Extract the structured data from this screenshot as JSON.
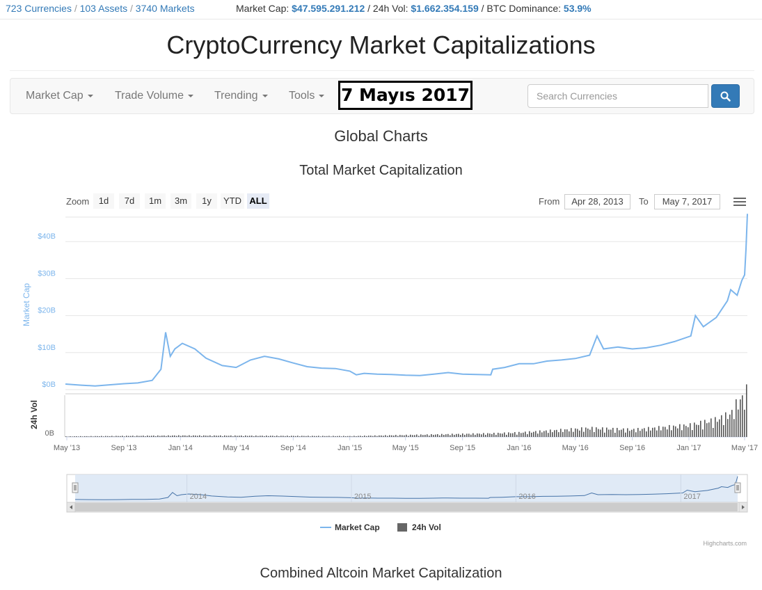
{
  "topbar": {
    "currencies": "723 Currencies",
    "assets": "103 Assets",
    "markets": "3740 Markets",
    "separator": "/"
  },
  "global_stats": {
    "market_cap_label": "Market Cap:",
    "market_cap_value": "$47.595.291.212",
    "vol_label": "/ 24h Vol:",
    "vol_value": "$1.662.354.159",
    "dominance_label": "/ BTC Dominance:",
    "dominance_value": "53.9%"
  },
  "site_title": "CryptoCurrency Market Capitalizations",
  "nav": {
    "items": [
      {
        "label": "Market Cap"
      },
      {
        "label": "Trade Volume"
      },
      {
        "label": "Trending"
      },
      {
        "label": "Tools"
      }
    ],
    "date_badge": "7 Mayıs 2017",
    "search_placeholder": "Search Currencies"
  },
  "headings": {
    "global": "Global Charts",
    "total": "Total Market Capitalization",
    "altcoin": "Combined Altcoin Market Capitalization"
  },
  "range_selector": {
    "zoom_label": "Zoom",
    "buttons": [
      "1d",
      "7d",
      "1m",
      "3m",
      "1y",
      "YTD",
      "ALL"
    ],
    "active": "ALL",
    "from_label": "From",
    "from_value": "Apr 28, 2013",
    "to_label": "To",
    "to_value": "May 7, 2017"
  },
  "colors": {
    "accent": "#337ab7",
    "series_line": "#7cb5ec",
    "volume_bar": "#555555",
    "navigator_fill": "#dbe6f5"
  },
  "chart_data": {
    "type": "line",
    "title": "Total Market Capitalization",
    "ylabel": "Market Cap",
    "ylabel_secondary": "24h Vol",
    "ylim": [
      0,
      47
    ],
    "yticks": [
      "$0B",
      "$10B",
      "$20B",
      "$30B",
      "$40B"
    ],
    "ytick_values": [
      0,
      10,
      20,
      30,
      40
    ],
    "vol_ytick": "0B",
    "xticks": [
      "May '13",
      "Sep '13",
      "Jan '14",
      "May '14",
      "Sep '14",
      "Jan '15",
      "May '15",
      "Sep '15",
      "Jan '16",
      "May '16",
      "Sep '16",
      "Jan '17",
      "May '17"
    ],
    "navigator_labels": [
      "2014",
      "2015",
      "2016",
      "2017"
    ],
    "legend": [
      "Market Cap",
      "24h Vol"
    ],
    "credit": "Highcharts.com",
    "series": [
      {
        "name": "Market Cap",
        "x": [
          "2013-04-28",
          "2013-06-01",
          "2013-07-01",
          "2013-08-01",
          "2013-09-01",
          "2013-10-01",
          "2013-11-01",
          "2013-11-20",
          "2013-11-30",
          "2013-12-10",
          "2013-12-20",
          "2014-01-05",
          "2014-02-01",
          "2014-02-25",
          "2014-04-01",
          "2014-05-01",
          "2014-06-01",
          "2014-07-01",
          "2014-08-01",
          "2014-09-01",
          "2014-10-01",
          "2014-11-01",
          "2014-12-01",
          "2015-01-01",
          "2015-01-15",
          "2015-02-01",
          "2015-03-01",
          "2015-04-01",
          "2015-05-01",
          "2015-06-01",
          "2015-07-01",
          "2015-08-01",
          "2015-09-01",
          "2015-10-01",
          "2015-11-01",
          "2015-11-05",
          "2015-12-01",
          "2016-01-01",
          "2016-02-01",
          "2016-03-01",
          "2016-04-01",
          "2016-05-01",
          "2016-06-01",
          "2016-06-17",
          "2016-07-01",
          "2016-08-01",
          "2016-09-01",
          "2016-10-01",
          "2016-11-01",
          "2016-12-01",
          "2017-01-05",
          "2017-01-15",
          "2017-02-01",
          "2017-03-01",
          "2017-03-25",
          "2017-04-01",
          "2017-04-15",
          "2017-04-25",
          "2017-05-01",
          "2017-05-04",
          "2017-05-07"
        ],
        "values": [
          1.5,
          1.2,
          1.0,
          1.3,
          1.6,
          1.8,
          2.5,
          5.5,
          15.5,
          9.0,
          11.0,
          12.5,
          11.0,
          8.5,
          6.5,
          6.0,
          8.0,
          9.0,
          8.3,
          7.2,
          6.2,
          5.8,
          5.7,
          5.0,
          4.0,
          4.4,
          4.2,
          4.1,
          3.9,
          3.8,
          4.2,
          4.6,
          4.2,
          4.1,
          4.0,
          5.5,
          6.0,
          7.0,
          7.0,
          7.7,
          8.0,
          8.4,
          9.3,
          14.5,
          11.0,
          11.5,
          11.0,
          11.3,
          12.0,
          13.0,
          14.5,
          20.0,
          17.0,
          19.5,
          24.0,
          27.0,
          25.5,
          29.5,
          31.0,
          38.0,
          47.5
        ]
      },
      {
        "name": "24h Vol",
        "x": [
          "2013-04-28",
          "2014-01-01",
          "2015-01-01",
          "2015-11-01",
          "2016-01-01",
          "2016-06-01",
          "2016-09-01",
          "2017-01-01",
          "2017-03-01",
          "2017-04-01",
          "2017-04-15",
          "2017-05-01",
          "2017-05-07"
        ],
        "values": [
          0.02,
          0.05,
          0.03,
          0.12,
          0.15,
          0.3,
          0.25,
          0.4,
          0.6,
          0.8,
          1.2,
          1.4,
          1.66
        ]
      }
    ]
  }
}
